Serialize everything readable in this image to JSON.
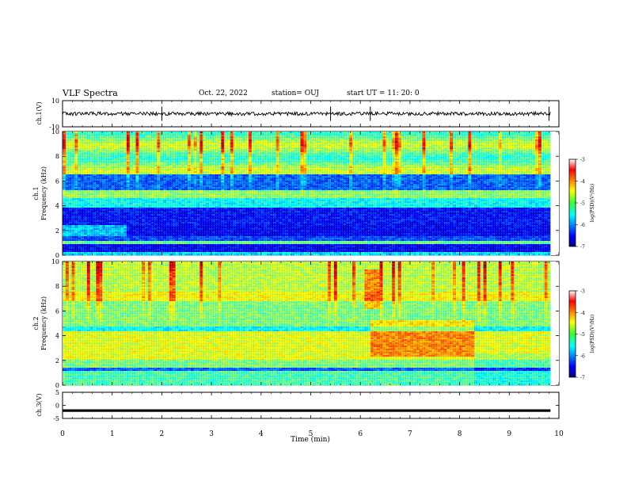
{
  "header": {
    "title": "VLF Spectra",
    "date": "Oct. 22, 2022",
    "station": "station= OUJ",
    "start": "start  UT =  11: 20: 0"
  },
  "chart_data": [
    {
      "type": "line",
      "panel": "ch1-waveform",
      "ylabel": "ch.1(V)",
      "ylim": [
        -10,
        10
      ],
      "yticks": [
        "10",
        "-10"
      ],
      "x": [
        0,
        9.83
      ],
      "series": [
        {
          "values": [
            0,
            0
          ]
        }
      ],
      "spikes_min": [
        2.0,
        5.4,
        6.2,
        9.8
      ]
    },
    {
      "type": "heatmap",
      "panel": "ch1-spectrogram",
      "ylabel_line1": "ch.1",
      "ylabel_line2": "Frequency (kHz)",
      "ylim": [
        0,
        10
      ],
      "yticks": [
        "0",
        "2",
        "4",
        "6",
        "8",
        "10"
      ],
      "colorbar_label": "log(PSD)(V²/Hz)",
      "colorbar_ticks": [
        "-3",
        "-4",
        "-5",
        "-6",
        "-7"
      ],
      "colorbar_range": [
        -7,
        -3
      ]
    },
    {
      "type": "heatmap",
      "panel": "ch2-spectrogram",
      "ylabel_line1": "ch.2",
      "ylabel_line2": "Frequency (kHz)",
      "ylim": [
        0,
        10
      ],
      "yticks": [
        "0",
        "2",
        "4",
        "6",
        "8",
        "10"
      ],
      "colorbar_label": "log(PSD)(V²/Hz)",
      "colorbar_ticks": [
        "-3",
        "-4",
        "-5",
        "-6",
        "-7"
      ],
      "colorbar_range": [
        -7,
        -3
      ]
    },
    {
      "type": "line",
      "panel": "ch3-waveform",
      "ylabel": "ch.3(V)",
      "ylim": [
        -5,
        5
      ],
      "yticks": [
        "5",
        "0",
        "-5"
      ],
      "x": [
        0,
        9.83
      ],
      "series": [
        {
          "values": [
            -2,
            -2
          ]
        }
      ]
    }
  ],
  "xaxis": {
    "label": "Time (min)",
    "ticks": [
      "0",
      "1",
      "2",
      "3",
      "4",
      "5",
      "6",
      "7",
      "8",
      "9",
      "10"
    ],
    "xlim": [
      0,
      10
    ]
  }
}
